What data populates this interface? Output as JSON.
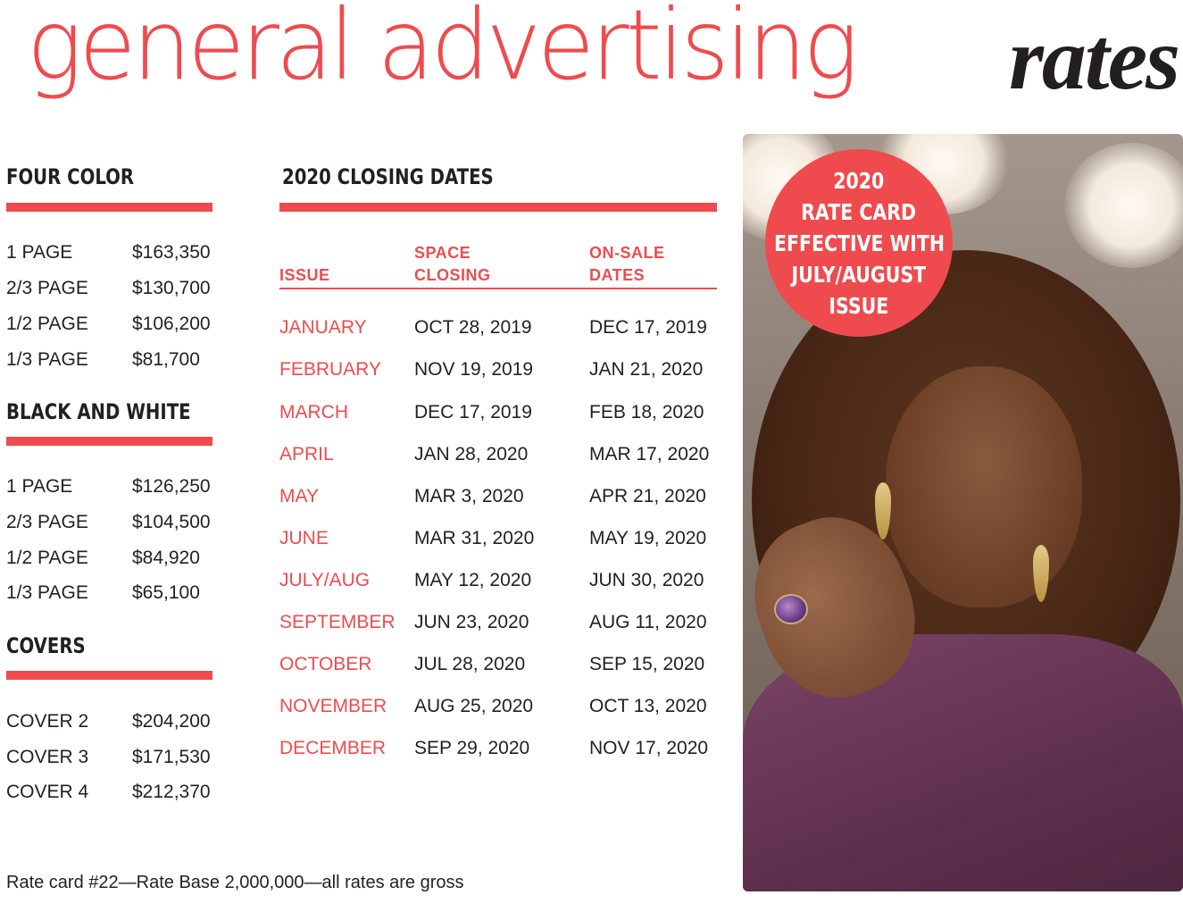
{
  "title": {
    "light": "general advertising",
    "bold": "rates"
  },
  "four_color": {
    "heading": "FOUR COLOR",
    "rows": [
      {
        "label": "1 PAGE",
        "value": "$163,350"
      },
      {
        "label": "2/3 PAGE",
        "value": "$130,700"
      },
      {
        "label": "1/2 PAGE",
        "value": "$106,200"
      },
      {
        "label": "1/3 PAGE",
        "value": "$81,700"
      }
    ]
  },
  "black_white": {
    "heading": "BLACK AND WHITE",
    "rows": [
      {
        "label": "1 PAGE",
        "value": "$126,250"
      },
      {
        "label": "2/3 PAGE",
        "value": "$104,500"
      },
      {
        "label": "1/2 PAGE",
        "value": "$84,920"
      },
      {
        "label": "1/3 PAGE",
        "value": "$65,100"
      }
    ]
  },
  "covers": {
    "heading": "COVERS",
    "rows": [
      {
        "label": "COVER 2",
        "value": "$204,200"
      },
      {
        "label": "COVER 3",
        "value": "$171,530"
      },
      {
        "label": "COVER 4",
        "value": "$212,370"
      }
    ]
  },
  "closing_dates": {
    "heading": "2020 CLOSING DATES",
    "col_issue": "ISSUE",
    "col_space_1": "SPACE",
    "col_space_2": "CLOSING",
    "col_onsale_1": "ON-SALE",
    "col_onsale_2": "DATES",
    "rows": [
      {
        "issue": "JANUARY",
        "space": "OCT 28, 2019",
        "onsale": "DEC 17, 2019"
      },
      {
        "issue": "FEBRUARY",
        "space": "NOV 19, 2019",
        "onsale": "JAN 21, 2020"
      },
      {
        "issue": "MARCH",
        "space": "DEC 17, 2019",
        "onsale": "FEB 18, 2020"
      },
      {
        "issue": "APRIL",
        "space": "JAN 28, 2020",
        "onsale": "MAR 17, 2020"
      },
      {
        "issue": "MAY",
        "space": "MAR 3, 2020",
        "onsale": "APR 21, 2020"
      },
      {
        "issue": "JUNE",
        "space": "MAR 31, 2020",
        "onsale": "MAY 19, 2020"
      },
      {
        "issue": "JULY/AUG",
        "space": "MAY 12, 2020",
        "onsale": "JUN 30, 2020"
      },
      {
        "issue": "SEPTEMBER",
        "space": "JUN 23, 2020",
        "onsale": "AUG 11, 2020"
      },
      {
        "issue": "OCTOBER",
        "space": "JUL 28, 2020",
        "onsale": "SEP 15, 2020"
      },
      {
        "issue": "NOVEMBER",
        "space": "AUG 25, 2020",
        "onsale": "OCT 13, 2020"
      },
      {
        "issue": "DECEMBER",
        "space": "SEP 29, 2020",
        "onsale": "NOV 17, 2020"
      }
    ]
  },
  "badge": {
    "line1": "2020",
    "line2": "RATE CARD",
    "line3": "EFFECTIVE WITH",
    "line4": "JULY/AUGUST",
    "line5": "ISSUE"
  },
  "footnote": "Rate card #22—Rate Base 2,000,000—all rates are gross",
  "colors": {
    "accent": "#ef4b4e",
    "text": "#231f20"
  }
}
